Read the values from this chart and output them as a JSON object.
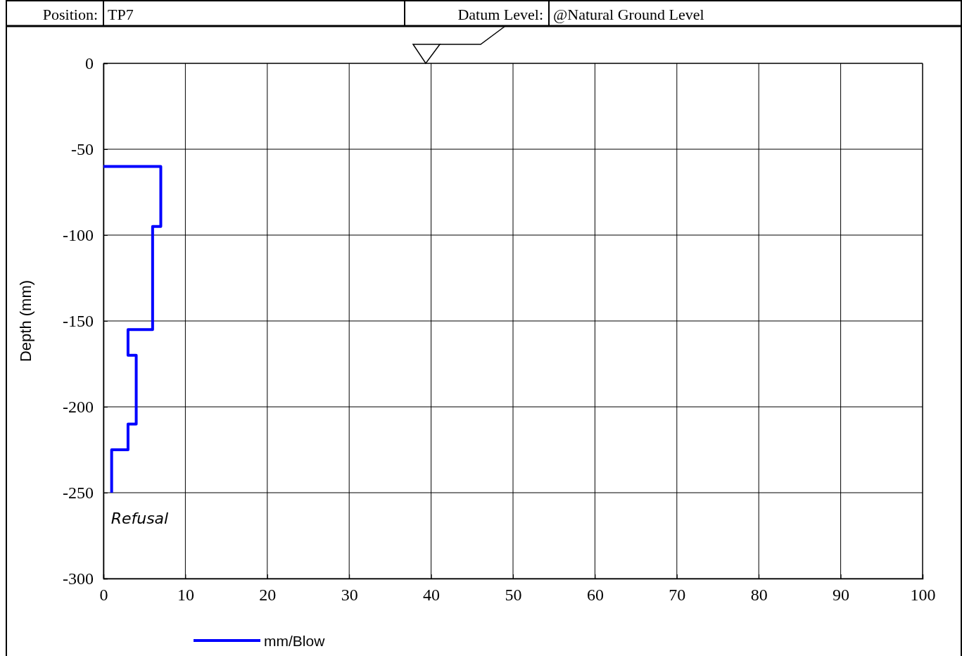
{
  "chart_data": {
    "type": "line",
    "ylabel": "Depth (mm)",
    "annotations": [
      "Position:",
      "TP7",
      "Datum Level:",
      "@Natural Ground Level",
      {
        "text": "Refusal",
        "x": 1,
        "y": -250
      }
    ],
    "series": [
      {
        "name": "mm/Blow",
        "color": "#0000ff",
        "x": [
          0,
          7,
          7,
          6,
          6,
          3,
          3,
          4,
          4,
          3,
          3,
          1,
          1
        ],
        "values": [
          -60,
          -60,
          -95,
          -95,
          -155,
          -155,
          -170,
          -170,
          -210,
          -210,
          -225,
          -225,
          -250
        ]
      }
    ],
    "xlim": [
      0,
      100
    ],
    "xticks": [
      0,
      10,
      20,
      30,
      40,
      50,
      60,
      70,
      80,
      90,
      100
    ],
    "ylim": [
      -300,
      0
    ],
    "yticks": [
      0,
      -50,
      -100,
      -150,
      -200,
      -250,
      -300
    ],
    "grid": true,
    "legend": "bottom",
    "marker": "none",
    "line_style": "solid"
  }
}
